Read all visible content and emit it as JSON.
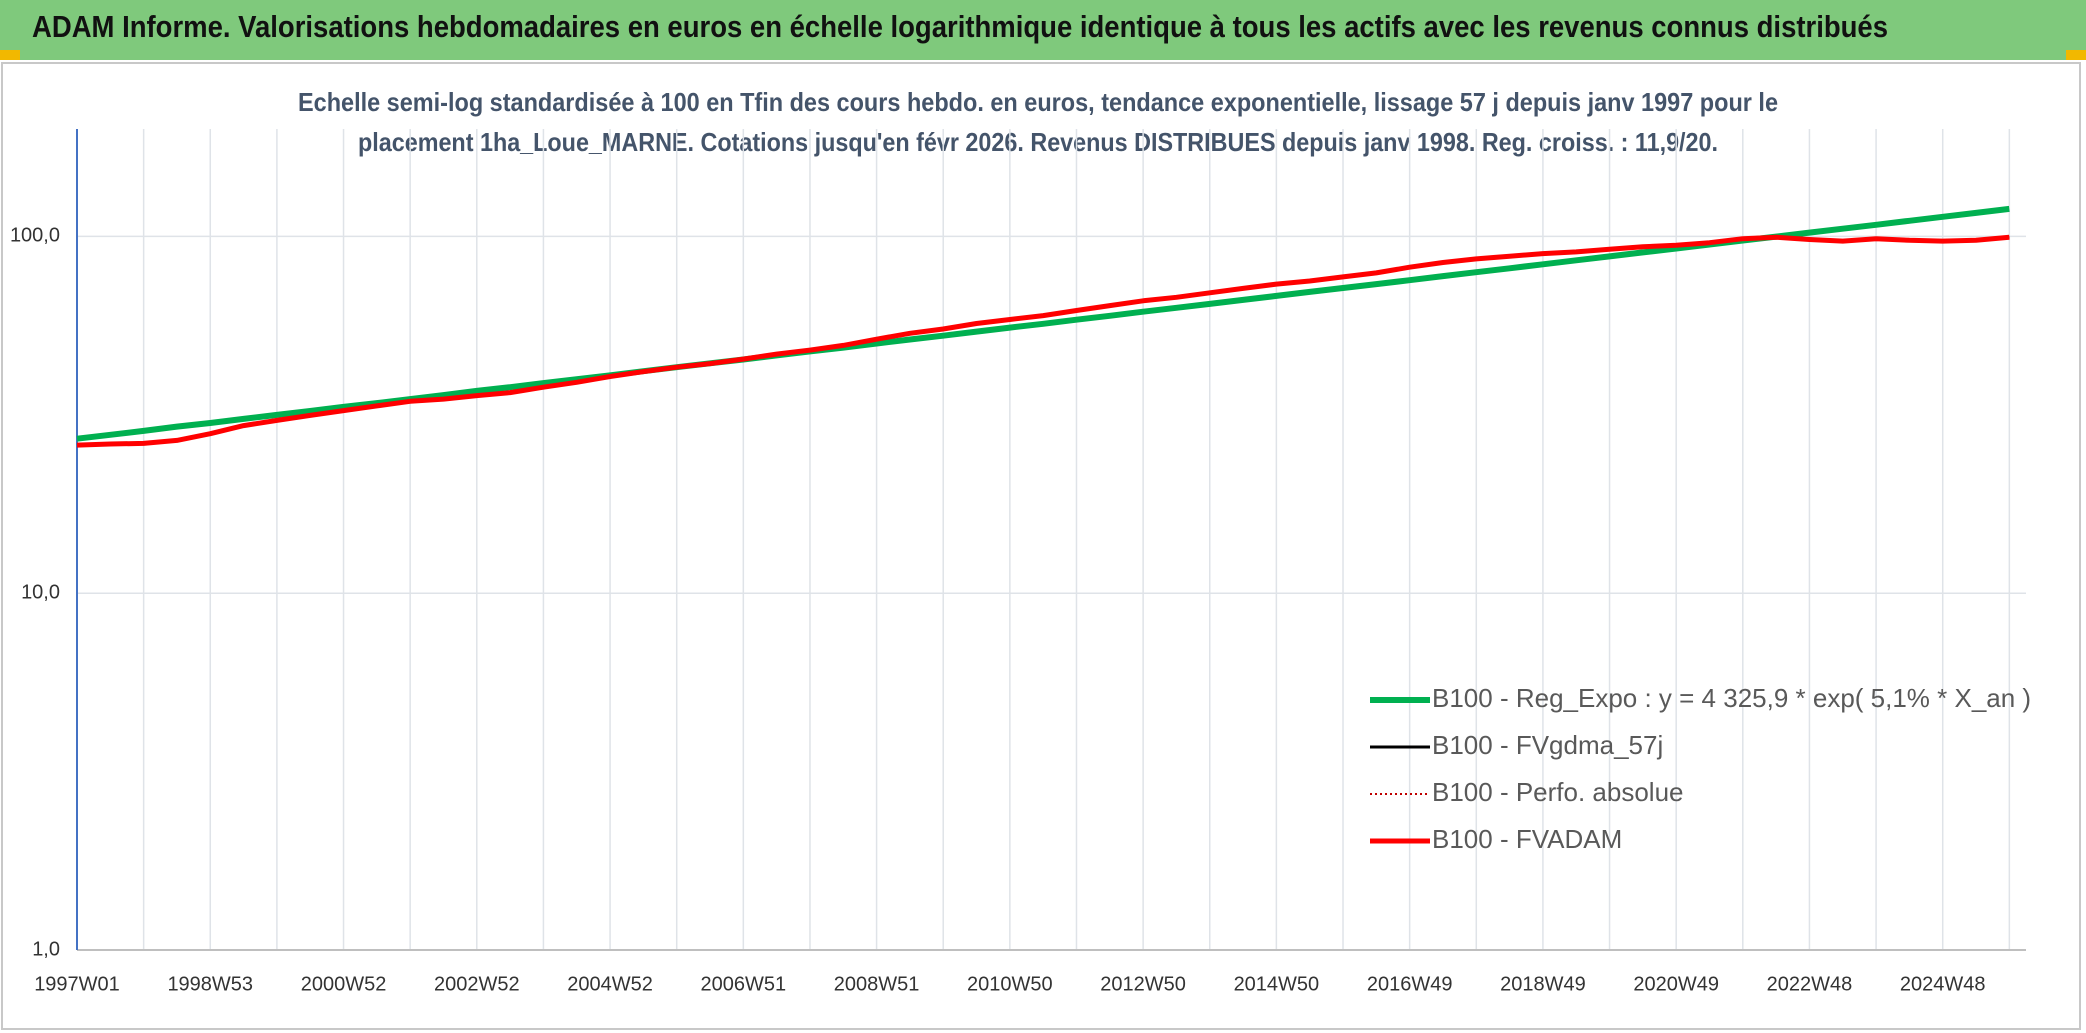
{
  "chart_data": {
    "type": "line",
    "title": "ADAM Informe. Valorisations hebdomadaires en euros en échelle logarithmique identique à tous les actifs avec les revenus connus distribués",
    "subtitle": [
      "Echelle semi-log standardisée à 100 en Tfin des cours hebdo. en euros, tendance exponentielle, lissage 57 j depuis janv 1997 pour le",
      "placement 1ha_Loue_MARNE. Cotations jusqu'en févr 2026. Revenus DISTRIBUES depuis janv 1998. Reg. croiss. : 11,9/20."
    ],
    "log_scale": true,
    "grid": true,
    "ylim": [
      1,
      200
    ],
    "yticks": [
      {
        "value": 1,
        "label": "1,0"
      },
      {
        "value": 10,
        "label": "10,0"
      },
      {
        "value": 100,
        "label": "100,0"
      }
    ],
    "categories": [
      "1997W01",
      null,
      null,
      null,
      "1998W53",
      null,
      null,
      null,
      "2000W52",
      null,
      null,
      null,
      "2002W52",
      null,
      null,
      null,
      "2004W52",
      null,
      null,
      null,
      "2006W51",
      null,
      null,
      null,
      "2008W51",
      null,
      null,
      null,
      "2010W50",
      null,
      null,
      null,
      "2012W50",
      null,
      null,
      null,
      "2014W50",
      null,
      null,
      null,
      "2016W49",
      null,
      null,
      null,
      "2018W49",
      null,
      null,
      null,
      "2020W49",
      null,
      null,
      null,
      "2022W48",
      null,
      null,
      null,
      "2024W48",
      null,
      null
    ],
    "series": [
      {
        "name": "B100 - Reg_Expo : y = 4 325,9 * exp( 5,1% *  X_an )",
        "color": "#00b050",
        "line_style": "solid",
        "values": [
          27.1,
          27.8,
          28.5,
          29.3,
          30.0,
          30.8,
          31.6,
          32.4,
          33.3,
          34.1,
          35.0,
          35.9,
          36.9,
          37.8,
          38.8,
          39.8,
          40.8,
          41.9,
          43.0,
          44.1,
          45.2,
          46.4,
          47.6,
          48.8,
          50.1,
          51.4,
          52.7,
          54.1,
          55.5,
          56.9,
          58.4,
          59.9,
          61.5,
          63.1,
          64.7,
          66.4,
          68.1,
          69.9,
          71.7,
          73.5,
          75.4,
          77.4,
          79.4,
          81.4,
          83.5,
          85.7,
          87.9,
          90.2,
          92.5,
          94.9,
          97.4,
          99.9,
          102.5,
          105.1,
          107.8,
          110.6,
          113.5,
          116.4,
          119.4
        ]
      },
      {
        "name": "B100 - FVgdma_57j",
        "color": "#000000",
        "line_style": "solid",
        "values": [
          26.0,
          26.2,
          26.3,
          26.8,
          28.0,
          29.5,
          30.5,
          31.5,
          32.5,
          33.5,
          34.5,
          35.0,
          35.8,
          36.5,
          37.8,
          39.0,
          40.5,
          41.8,
          43.0,
          44.0,
          45.3,
          46.8,
          48.0,
          49.5,
          51.5,
          53.5,
          55.0,
          57.0,
          58.5,
          60.0,
          62.0,
          64.0,
          66.0,
          67.5,
          69.5,
          71.5,
          73.5,
          75.0,
          77.0,
          79.0,
          82.0,
          84.5,
          86.5,
          88.0,
          89.5,
          90.5,
          92.0,
          93.5,
          94.5,
          96.0,
          98.5,
          99.5,
          98.0,
          97.0,
          98.5,
          97.5,
          97.0,
          97.5,
          99.5
        ]
      },
      {
        "name": "B100 - Perfo. absolue",
        "color": "#c00000",
        "line_style": "dotted",
        "values": [
          26.0,
          26.2,
          26.3,
          26.8,
          28.0,
          29.5,
          30.5,
          31.5,
          32.5,
          33.5,
          34.5,
          35.0,
          35.8,
          36.5,
          37.8,
          39.0,
          40.5,
          41.8,
          43.0,
          44.0,
          45.3,
          46.8,
          48.0,
          49.5,
          51.5,
          53.5,
          55.0,
          57.0,
          58.5,
          60.0,
          62.0,
          64.0,
          66.0,
          67.5,
          69.5,
          71.5,
          73.5,
          75.0,
          77.0,
          79.0,
          82.0,
          84.5,
          86.5,
          88.0,
          89.5,
          90.5,
          92.0,
          93.5,
          94.5,
          96.0,
          98.5,
          99.5,
          98.0,
          97.0,
          98.5,
          97.5,
          97.0,
          97.5,
          99.5
        ]
      },
      {
        "name": "B100 - FVADAM",
        "color": "#ff0000",
        "line_style": "solid",
        "values": [
          26.0,
          26.2,
          26.3,
          26.8,
          28.0,
          29.5,
          30.5,
          31.5,
          32.5,
          33.5,
          34.5,
          35.0,
          35.8,
          36.5,
          37.8,
          39.0,
          40.5,
          41.8,
          43.0,
          44.0,
          45.3,
          46.8,
          48.0,
          49.5,
          51.5,
          53.5,
          55.0,
          57.0,
          58.5,
          60.0,
          62.0,
          64.0,
          66.0,
          67.5,
          69.5,
          71.5,
          73.5,
          75.0,
          77.0,
          79.0,
          82.0,
          84.5,
          86.5,
          88.0,
          89.5,
          90.5,
          92.0,
          93.5,
          94.5,
          96.0,
          98.5,
          99.5,
          98.0,
          97.0,
          98.5,
          97.5,
          97.0,
          97.5,
          99.5
        ]
      }
    ]
  }
}
